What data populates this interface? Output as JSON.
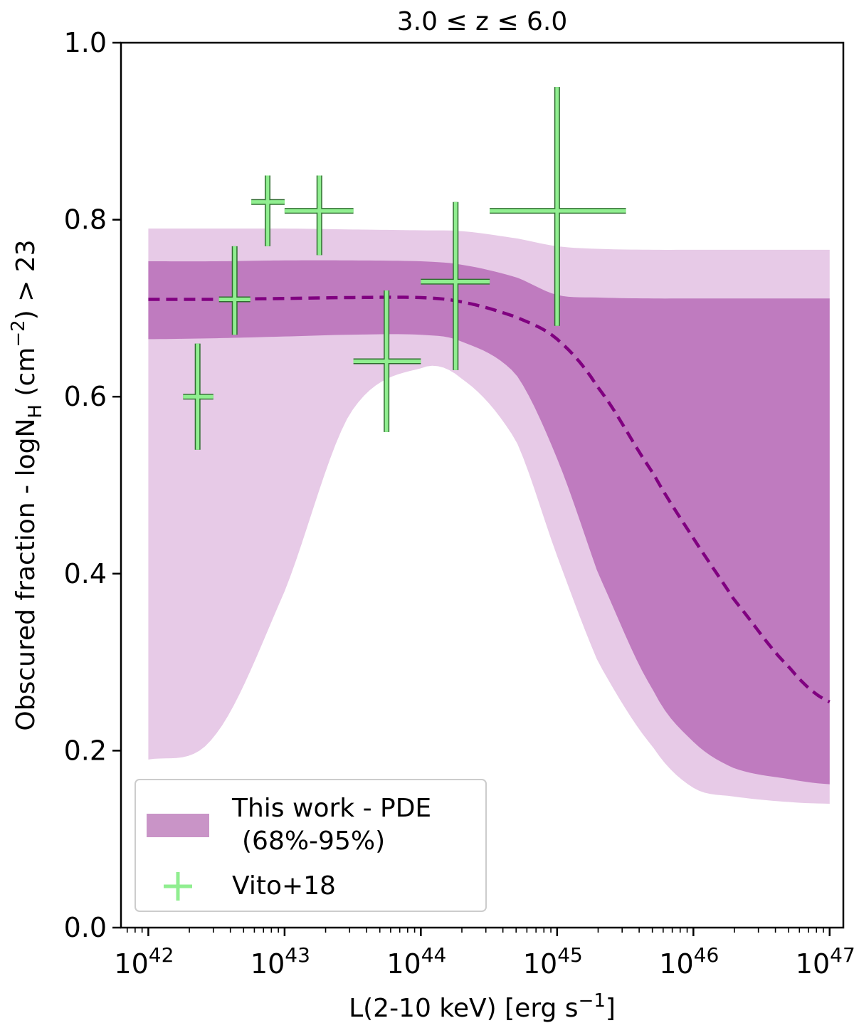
{
  "chart_data": {
    "type": "line",
    "title": "3.0 ≤ z ≤ 6.0",
    "xlabel": "L(2-10 keV) [erg s⁻¹]",
    "ylabel": "Obscured fraction - logN_H (cm⁻²) > 23",
    "xscale": "log",
    "xlim": [
      6.3e+41,
      1.26e+47
    ],
    "ylim": [
      0.0,
      1.0
    ],
    "x_ticks": [
      {
        "value": 1e+42,
        "base": "10",
        "exp": "42"
      },
      {
        "value": 1e+43,
        "base": "10",
        "exp": "43"
      },
      {
        "value": 1e+44,
        "base": "10",
        "exp": "44"
      },
      {
        "value": 1e+45,
        "base": "10",
        "exp": "45"
      },
      {
        "value": 1e+46,
        "base": "10",
        "exp": "46"
      },
      {
        "value": 1e+47,
        "base": "10",
        "exp": "47"
      }
    ],
    "y_ticks": [
      "0.0",
      "0.2",
      "0.4",
      "0.6",
      "0.8",
      "1.0"
    ],
    "grid": false,
    "legend": {
      "position": "lower-left",
      "entries": [
        {
          "label_line1": "This work - PDE",
          "label_line2": "(68%-95%)",
          "color": "#c994c7"
        },
        {
          "label_line1": "Vito+18",
          "label_line2": "",
          "color": "#90ee90"
        }
      ]
    },
    "series": [
      {
        "name": "This work - PDE",
        "style": "dashed-line-with-bands",
        "line_color": "#800080",
        "band68_color": "#bf7bbf",
        "band95_color": "#e7cae7",
        "x": [
          1e+42,
          3e+42,
          1e+43,
          3e+43,
          1e+44,
          2e+44,
          5e+44,
          1e+45,
          2e+45,
          5e+45,
          1e+46,
          2e+46,
          5e+46,
          1e+47
        ],
        "median": [
          0.71,
          0.71,
          0.711,
          0.712,
          0.712,
          0.707,
          0.69,
          0.665,
          0.61,
          0.515,
          0.44,
          0.37,
          0.295,
          0.255
        ],
        "band68_lower": [
          0.665,
          0.666,
          0.668,
          0.67,
          0.67,
          0.662,
          0.625,
          0.53,
          0.4,
          0.27,
          0.21,
          0.18,
          0.168,
          0.162
        ],
        "band68_upper": [
          0.753,
          0.753,
          0.754,
          0.754,
          0.753,
          0.749,
          0.735,
          0.715,
          0.712,
          0.711,
          0.711,
          0.711,
          0.711,
          0.711
        ],
        "band95_lower": [
          0.19,
          0.215,
          0.38,
          0.58,
          0.632,
          0.62,
          0.55,
          0.42,
          0.3,
          0.205,
          0.158,
          0.148,
          0.142,
          0.14
        ],
        "band95_upper": [
          0.79,
          0.79,
          0.79,
          0.789,
          0.788,
          0.787,
          0.779,
          0.77,
          0.767,
          0.766,
          0.766,
          0.766,
          0.766,
          0.766
        ]
      },
      {
        "name": "Vito+18",
        "style": "errorbar-cross",
        "color": "#90ee90",
        "points": [
          {
            "x": 2.3e+42,
            "y": 0.6,
            "xlo": 1.8e+42,
            "xhi": 3e+42,
            "ylo": 0.54,
            "yhi": 0.66
          },
          {
            "x": 4.3e+42,
            "y": 0.71,
            "xlo": 3.3e+42,
            "xhi": 5.6e+42,
            "ylo": 0.67,
            "yhi": 0.77
          },
          {
            "x": 7.5e+42,
            "y": 0.82,
            "xlo": 5.7e+42,
            "xhi": 1e+43,
            "ylo": 0.77,
            "yhi": 0.85
          },
          {
            "x": 1.8e+43,
            "y": 0.81,
            "xlo": 1e+43,
            "xhi": 3.2e+43,
            "ylo": 0.76,
            "yhi": 0.85
          },
          {
            "x": 5.6e+43,
            "y": 0.64,
            "xlo": 3.2e+43,
            "xhi": 1e+44,
            "ylo": 0.56,
            "yhi": 0.72
          },
          {
            "x": 1.8e+44,
            "y": 0.73,
            "xlo": 1e+44,
            "xhi": 3.2e+44,
            "ylo": 0.63,
            "yhi": 0.82
          },
          {
            "x": 1e+45,
            "y": 0.81,
            "xlo": 3.2e+44,
            "xhi": 3.2e+45,
            "ylo": 0.68,
            "yhi": 0.95
          }
        ]
      }
    ]
  }
}
